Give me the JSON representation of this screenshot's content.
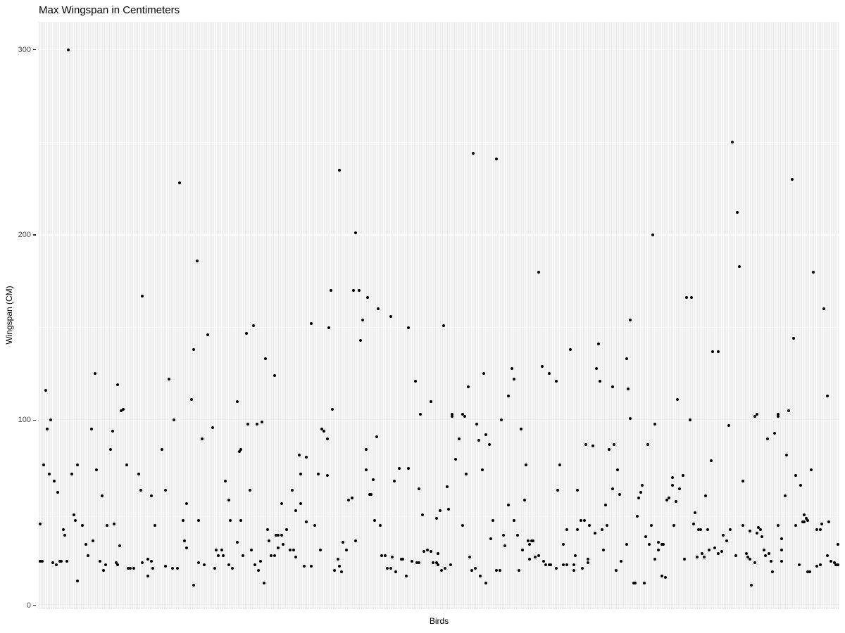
{
  "chart_data": {
    "type": "scatter",
    "title": "Max Wingspan in Centimeters",
    "xlabel": "Birds",
    "ylabel": "Wingspan (CM)",
    "y_ticks_major": [
      0,
      100,
      200,
      300
    ],
    "y_ticks_minor": [
      50,
      150,
      250
    ],
    "y_domain": [
      -2,
      315
    ],
    "x_categories_count": 455,
    "x_axis_tick_labels_shown": false,
    "grid": "on",
    "legend": "none",
    "colors": {
      "panel_background": "#ebebeb",
      "gridline": "#ffffff",
      "point": "#000000",
      "tick_text": "#4d4d4d",
      "title_text": "#000000"
    },
    "points": [
      [
        17,
        300
      ],
      [
        80,
        228
      ],
      [
        171,
        235
      ],
      [
        247,
        244
      ],
      [
        260,
        241
      ],
      [
        394,
        250
      ],
      [
        428,
        230
      ],
      [
        397,
        212
      ],
      [
        349,
        200
      ],
      [
        180,
        201
      ],
      [
        90,
        186
      ],
      [
        398,
        183
      ],
      [
        284,
        180
      ],
      [
        440,
        180
      ],
      [
        59,
        167
      ],
      [
        166,
        170
      ],
      [
        179,
        170
      ],
      [
        182,
        170
      ],
      [
        187,
        166
      ],
      [
        193,
        160
      ],
      [
        200,
        156
      ],
      [
        184,
        154
      ],
      [
        155,
        152
      ],
      [
        122,
        151
      ],
      [
        165,
        150
      ],
      [
        210,
        150
      ],
      [
        118,
        147
      ],
      [
        183,
        143
      ],
      [
        129,
        133
      ],
      [
        134,
        124
      ],
      [
        214,
        121
      ],
      [
        223,
        110
      ],
      [
        167,
        106
      ],
      [
        217,
        103
      ],
      [
        336,
        154
      ],
      [
        230,
        151
      ],
      [
        318,
        141
      ],
      [
        302,
        138
      ],
      [
        334,
        133
      ],
      [
        286,
        129
      ],
      [
        317,
        128
      ],
      [
        269,
        128
      ],
      [
        290,
        125
      ],
      [
        253,
        125
      ],
      [
        270,
        122
      ],
      [
        294,
        121
      ],
      [
        319,
        121
      ],
      [
        244,
        118
      ],
      [
        326,
        118
      ],
      [
        335,
        117
      ],
      [
        267,
        113
      ],
      [
        235,
        103
      ],
      [
        241,
        103
      ],
      [
        368,
        166
      ],
      [
        371,
        166
      ],
      [
        446,
        160
      ],
      [
        429,
        144
      ],
      [
        383,
        137
      ],
      [
        386,
        137
      ],
      [
        363,
        111
      ],
      [
        448,
        113
      ],
      [
        426,
        105
      ],
      [
        408,
        103
      ],
      [
        420,
        103
      ],
      [
        96,
        146
      ],
      [
        88,
        138
      ],
      [
        32,
        125
      ],
      [
        45,
        119
      ],
      [
        74,
        122
      ],
      [
        4,
        116
      ],
      [
        87,
        111
      ],
      [
        113,
        110
      ],
      [
        47,
        105
      ],
      [
        48,
        106
      ],
      [
        7,
        100
      ],
      [
        77,
        100
      ],
      [
        5,
        95
      ],
      [
        30,
        95
      ],
      [
        42,
        94
      ],
      [
        99,
        96
      ],
      [
        93,
        90
      ],
      [
        114,
        83
      ],
      [
        70,
        84
      ],
      [
        41,
        84
      ],
      [
        3,
        76
      ],
      [
        22,
        76
      ],
      [
        50,
        76
      ],
      [
        33,
        73
      ],
      [
        6,
        71
      ],
      [
        19,
        71
      ],
      [
        57,
        71
      ],
      [
        9,
        67
      ],
      [
        106,
        67
      ],
      [
        11,
        61
      ],
      [
        58,
        62
      ],
      [
        72,
        62
      ],
      [
        36,
        59
      ],
      [
        64,
        59
      ],
      [
        84,
        55
      ],
      [
        108,
        57
      ],
      [
        20,
        49
      ],
      [
        21,
        46
      ],
      [
        25,
        43
      ],
      [
        1,
        44
      ],
      [
        14,
        41
      ],
      [
        15,
        38
      ],
      [
        39,
        43
      ],
      [
        43,
        44
      ],
      [
        66,
        43
      ],
      [
        82,
        46
      ],
      [
        91,
        46
      ],
      [
        109,
        46
      ],
      [
        46,
        32
      ],
      [
        27,
        33
      ],
      [
        31,
        35
      ],
      [
        28,
        27
      ],
      [
        35,
        24
      ],
      [
        37,
        19
      ],
      [
        38,
        22
      ],
      [
        44,
        23
      ],
      [
        45,
        22
      ],
      [
        51,
        20
      ],
      [
        52,
        20
      ],
      [
        54,
        20
      ],
      [
        59,
        23
      ],
      [
        62,
        25
      ],
      [
        64,
        24
      ],
      [
        65,
        20
      ],
      [
        62,
        16
      ],
      [
        72,
        21
      ],
      [
        76,
        20
      ],
      [
        79,
        20
      ],
      [
        2,
        24
      ],
      [
        1,
        24
      ],
      [
        8,
        23
      ],
      [
        10,
        22
      ],
      [
        12,
        24
      ],
      [
        13,
        24
      ],
      [
        16,
        24
      ],
      [
        22,
        13
      ],
      [
        88,
        11
      ],
      [
        91,
        23
      ],
      [
        94,
        22
      ],
      [
        101,
        30
      ],
      [
        104,
        30
      ],
      [
        102,
        27
      ],
      [
        105,
        27
      ],
      [
        108,
        22
      ],
      [
        110,
        20
      ],
      [
        100,
        20
      ],
      [
        83,
        35
      ],
      [
        84,
        31
      ],
      [
        113,
        34
      ],
      [
        119,
        98
      ],
      [
        124,
        98
      ],
      [
        127,
        99
      ],
      [
        161,
        95
      ],
      [
        162,
        94
      ],
      [
        164,
        90
      ],
      [
        192,
        91
      ],
      [
        115,
        84
      ],
      [
        186,
        84
      ],
      [
        148,
        81
      ],
      [
        152,
        80
      ],
      [
        186,
        73
      ],
      [
        205,
        74
      ],
      [
        210,
        74
      ],
      [
        149,
        71
      ],
      [
        159,
        71
      ],
      [
        164,
        70
      ],
      [
        190,
        68
      ],
      [
        202,
        67
      ],
      [
        216,
        63
      ],
      [
        120,
        62
      ],
      [
        144,
        62
      ],
      [
        188,
        60
      ],
      [
        189,
        60
      ],
      [
        178,
        58
      ],
      [
        176,
        57
      ],
      [
        138,
        55
      ],
      [
        149,
        55
      ],
      [
        146,
        51
      ],
      [
        115,
        46
      ],
      [
        152,
        45
      ],
      [
        157,
        43
      ],
      [
        191,
        46
      ],
      [
        194,
        43
      ],
      [
        218,
        49
      ],
      [
        226,
        47
      ],
      [
        228,
        51
      ],
      [
        130,
        41
      ],
      [
        141,
        41
      ],
      [
        135,
        38
      ],
      [
        136,
        38
      ],
      [
        138,
        38
      ],
      [
        131,
        35
      ],
      [
        139,
        33
      ],
      [
        136,
        31
      ],
      [
        134,
        27
      ],
      [
        132,
        27
      ],
      [
        121,
        30
      ],
      [
        116,
        27
      ],
      [
        143,
        30
      ],
      [
        145,
        30
      ],
      [
        146,
        26
      ],
      [
        123,
        22
      ],
      [
        126,
        24
      ],
      [
        125,
        19
      ],
      [
        151,
        21
      ],
      [
        155,
        21
      ],
      [
        160,
        30
      ],
      [
        168,
        19
      ],
      [
        170,
        25
      ],
      [
        171,
        21
      ],
      [
        172,
        18
      ],
      [
        173,
        34
      ],
      [
        175,
        30
      ],
      [
        180,
        35
      ],
      [
        195,
        27
      ],
      [
        197,
        27
      ],
      [
        198,
        20
      ],
      [
        200,
        20
      ],
      [
        201,
        26
      ],
      [
        203,
        18
      ],
      [
        206,
        25
      ],
      [
        207,
        25
      ],
      [
        209,
        16
      ],
      [
        212,
        24
      ],
      [
        215,
        23
      ],
      [
        216,
        23
      ],
      [
        219,
        29
      ],
      [
        221,
        30
      ],
      [
        223,
        29
      ],
      [
        224,
        23
      ],
      [
        226,
        23
      ],
      [
        227,
        22
      ],
      [
        128,
        12
      ],
      [
        235,
        102
      ],
      [
        242,
        102
      ],
      [
        263,
        100
      ],
      [
        336,
        101
      ],
      [
        249,
        98
      ],
      [
        274,
        95
      ],
      [
        239,
        90
      ],
      [
        254,
        92
      ],
      [
        250,
        89
      ],
      [
        256,
        87
      ],
      [
        311,
        87
      ],
      [
        315,
        86
      ],
      [
        324,
        84
      ],
      [
        327,
        87
      ],
      [
        237,
        79
      ],
      [
        277,
        76
      ],
      [
        296,
        76
      ],
      [
        243,
        71
      ],
      [
        252,
        73
      ],
      [
        329,
        73
      ],
      [
        232,
        64
      ],
      [
        295,
        62
      ],
      [
        306,
        62
      ],
      [
        326,
        63
      ],
      [
        330,
        60
      ],
      [
        341,
        58
      ],
      [
        276,
        57
      ],
      [
        267,
        54
      ],
      [
        233,
        52
      ],
      [
        322,
        54
      ],
      [
        340,
        48
      ],
      [
        258,
        46
      ],
      [
        270,
        46
      ],
      [
        308,
        46
      ],
      [
        310,
        46
      ],
      [
        313,
        43
      ],
      [
        316,
        39
      ],
      [
        320,
        41
      ],
      [
        323,
        43
      ],
      [
        241,
        43
      ],
      [
        300,
        41
      ],
      [
        306,
        41
      ],
      [
        264,
        38
      ],
      [
        272,
        38
      ],
      [
        257,
        36
      ],
      [
        278,
        35
      ],
      [
        280,
        35
      ],
      [
        279,
        33
      ],
      [
        281,
        35
      ],
      [
        265,
        32
      ],
      [
        275,
        30
      ],
      [
        298,
        33
      ],
      [
        321,
        30
      ],
      [
        245,
        26
      ],
      [
        234,
        22
      ],
      [
        231,
        20
      ],
      [
        229,
        19
      ],
      [
        246,
        19
      ],
      [
        248,
        20
      ],
      [
        251,
        16
      ],
      [
        254,
        12
      ],
      [
        260,
        19
      ],
      [
        262,
        19
      ],
      [
        273,
        19
      ],
      [
        279,
        25
      ],
      [
        282,
        26
      ],
      [
        284,
        27
      ],
      [
        287,
        24
      ],
      [
        288,
        22
      ],
      [
        290,
        22
      ],
      [
        291,
        22
      ],
      [
        294,
        20
      ],
      [
        298,
        22
      ],
      [
        300,
        22
      ],
      [
        304,
        22
      ],
      [
        304,
        19
      ],
      [
        309,
        20
      ],
      [
        312,
        23
      ],
      [
        305,
        27
      ],
      [
        312,
        25
      ],
      [
        331,
        24
      ],
      [
        328,
        19
      ],
      [
        334,
        33
      ],
      [
        338,
        12
      ],
      [
        339,
        12
      ],
      [
        227,
        28
      ],
      [
        370,
        100
      ],
      [
        350,
        98
      ],
      [
        392,
        97
      ],
      [
        418,
        93
      ],
      [
        414,
        90
      ],
      [
        346,
        87
      ],
      [
        425,
        81
      ],
      [
        382,
        78
      ],
      [
        439,
        73
      ],
      [
        360,
        69
      ],
      [
        366,
        70
      ],
      [
        360,
        65
      ],
      [
        364,
        63
      ],
      [
        430,
        70
      ],
      [
        433,
        65
      ],
      [
        343,
        65
      ],
      [
        342,
        61
      ],
      [
        400,
        67
      ],
      [
        424,
        59
      ],
      [
        358,
        58
      ],
      [
        357,
        57
      ],
      [
        362,
        56
      ],
      [
        379,
        59
      ],
      [
        373,
        50
      ],
      [
        435,
        49
      ],
      [
        436,
        47
      ],
      [
        348,
        43
      ],
      [
        361,
        43
      ],
      [
        372,
        44
      ],
      [
        375,
        41
      ],
      [
        376,
        41
      ],
      [
        380,
        41
      ],
      [
        393,
        41
      ],
      [
        400,
        43
      ],
      [
        409,
        42
      ],
      [
        410,
        41
      ],
      [
        404,
        40
      ],
      [
        408,
        39
      ],
      [
        389,
        38
      ],
      [
        391,
        35
      ],
      [
        411,
        37
      ],
      [
        422,
        36
      ],
      [
        420,
        43
      ],
      [
        430,
        43
      ],
      [
        434,
        45
      ],
      [
        435,
        45
      ],
      [
        437,
        46
      ],
      [
        442,
        41
      ],
      [
        444,
        41
      ],
      [
        445,
        44
      ],
      [
        449,
        45
      ],
      [
        454,
        33
      ],
      [
        345,
        37
      ],
      [
        347,
        33
      ],
      [
        352,
        34
      ],
      [
        354,
        33
      ],
      [
        355,
        33
      ],
      [
        352,
        30
      ],
      [
        350,
        25
      ],
      [
        367,
        25
      ],
      [
        374,
        26
      ],
      [
        377,
        28
      ],
      [
        378,
        26
      ],
      [
        381,
        30
      ],
      [
        384,
        31
      ],
      [
        388,
        29
      ],
      [
        386,
        28
      ],
      [
        396,
        27
      ],
      [
        402,
        28
      ],
      [
        403,
        26
      ],
      [
        404,
        25
      ],
      [
        407,
        23
      ],
      [
        412,
        30
      ],
      [
        413,
        27
      ],
      [
        415,
        28
      ],
      [
        416,
        24
      ],
      [
        422,
        24
      ],
      [
        417,
        18
      ],
      [
        422,
        30
      ],
      [
        432,
        22
      ],
      [
        437,
        18
      ],
      [
        438,
        18
      ],
      [
        442,
        21
      ],
      [
        444,
        22
      ],
      [
        448,
        27
      ],
      [
        450,
        24
      ],
      [
        452,
        23
      ],
      [
        453,
        22
      ],
      [
        454,
        22
      ],
      [
        354,
        16
      ],
      [
        356,
        15
      ],
      [
        344,
        12
      ],
      [
        405,
        11
      ],
      [
        407,
        102
      ],
      [
        420,
        102
      ]
    ]
  }
}
